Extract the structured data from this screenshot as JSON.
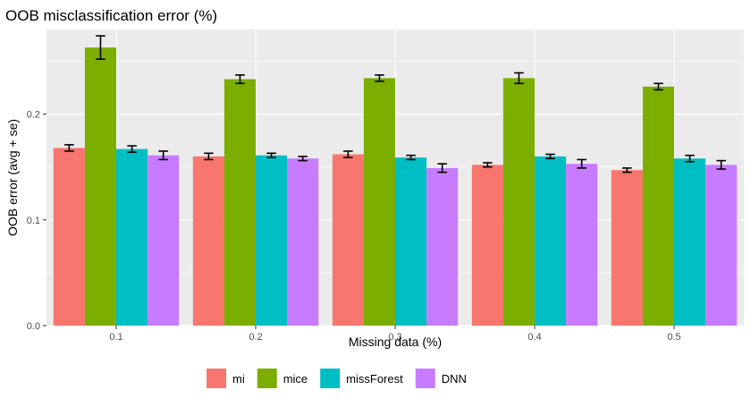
{
  "chart_data": {
    "type": "bar",
    "title": "OOB misclassification error (%)",
    "xlabel": "Missing data (%)",
    "ylabel": "OOB error (avg + se)",
    "categories": [
      "0.1",
      "0.2",
      "0.3",
      "0.4",
      "0.5"
    ],
    "ylim": [
      0,
      0.28
    ],
    "yticks": [
      0.0,
      0.1,
      0.2
    ],
    "ytick_labels": [
      "0.0",
      "0.1",
      "0.2"
    ],
    "grid": true,
    "legend_position": "bottom",
    "series": [
      {
        "name": "mi",
        "color": "#F8766D",
        "values": [
          0.168,
          0.16,
          0.162,
          0.152,
          0.147
        ],
        "se": [
          0.003,
          0.003,
          0.003,
          0.002,
          0.002
        ]
      },
      {
        "name": "mice",
        "color": "#7CAE00",
        "values": [
          0.263,
          0.233,
          0.234,
          0.234,
          0.226
        ],
        "se": [
          0.011,
          0.004,
          0.003,
          0.005,
          0.003
        ]
      },
      {
        "name": "missForest",
        "color": "#00BFC4",
        "values": [
          0.167,
          0.161,
          0.159,
          0.16,
          0.158
        ],
        "se": [
          0.003,
          0.002,
          0.002,
          0.002,
          0.003
        ]
      },
      {
        "name": "DNN",
        "color": "#C77CFF",
        "values": [
          0.161,
          0.158,
          0.149,
          0.153,
          0.152
        ],
        "se": [
          0.004,
          0.002,
          0.004,
          0.004,
          0.004
        ]
      }
    ]
  }
}
